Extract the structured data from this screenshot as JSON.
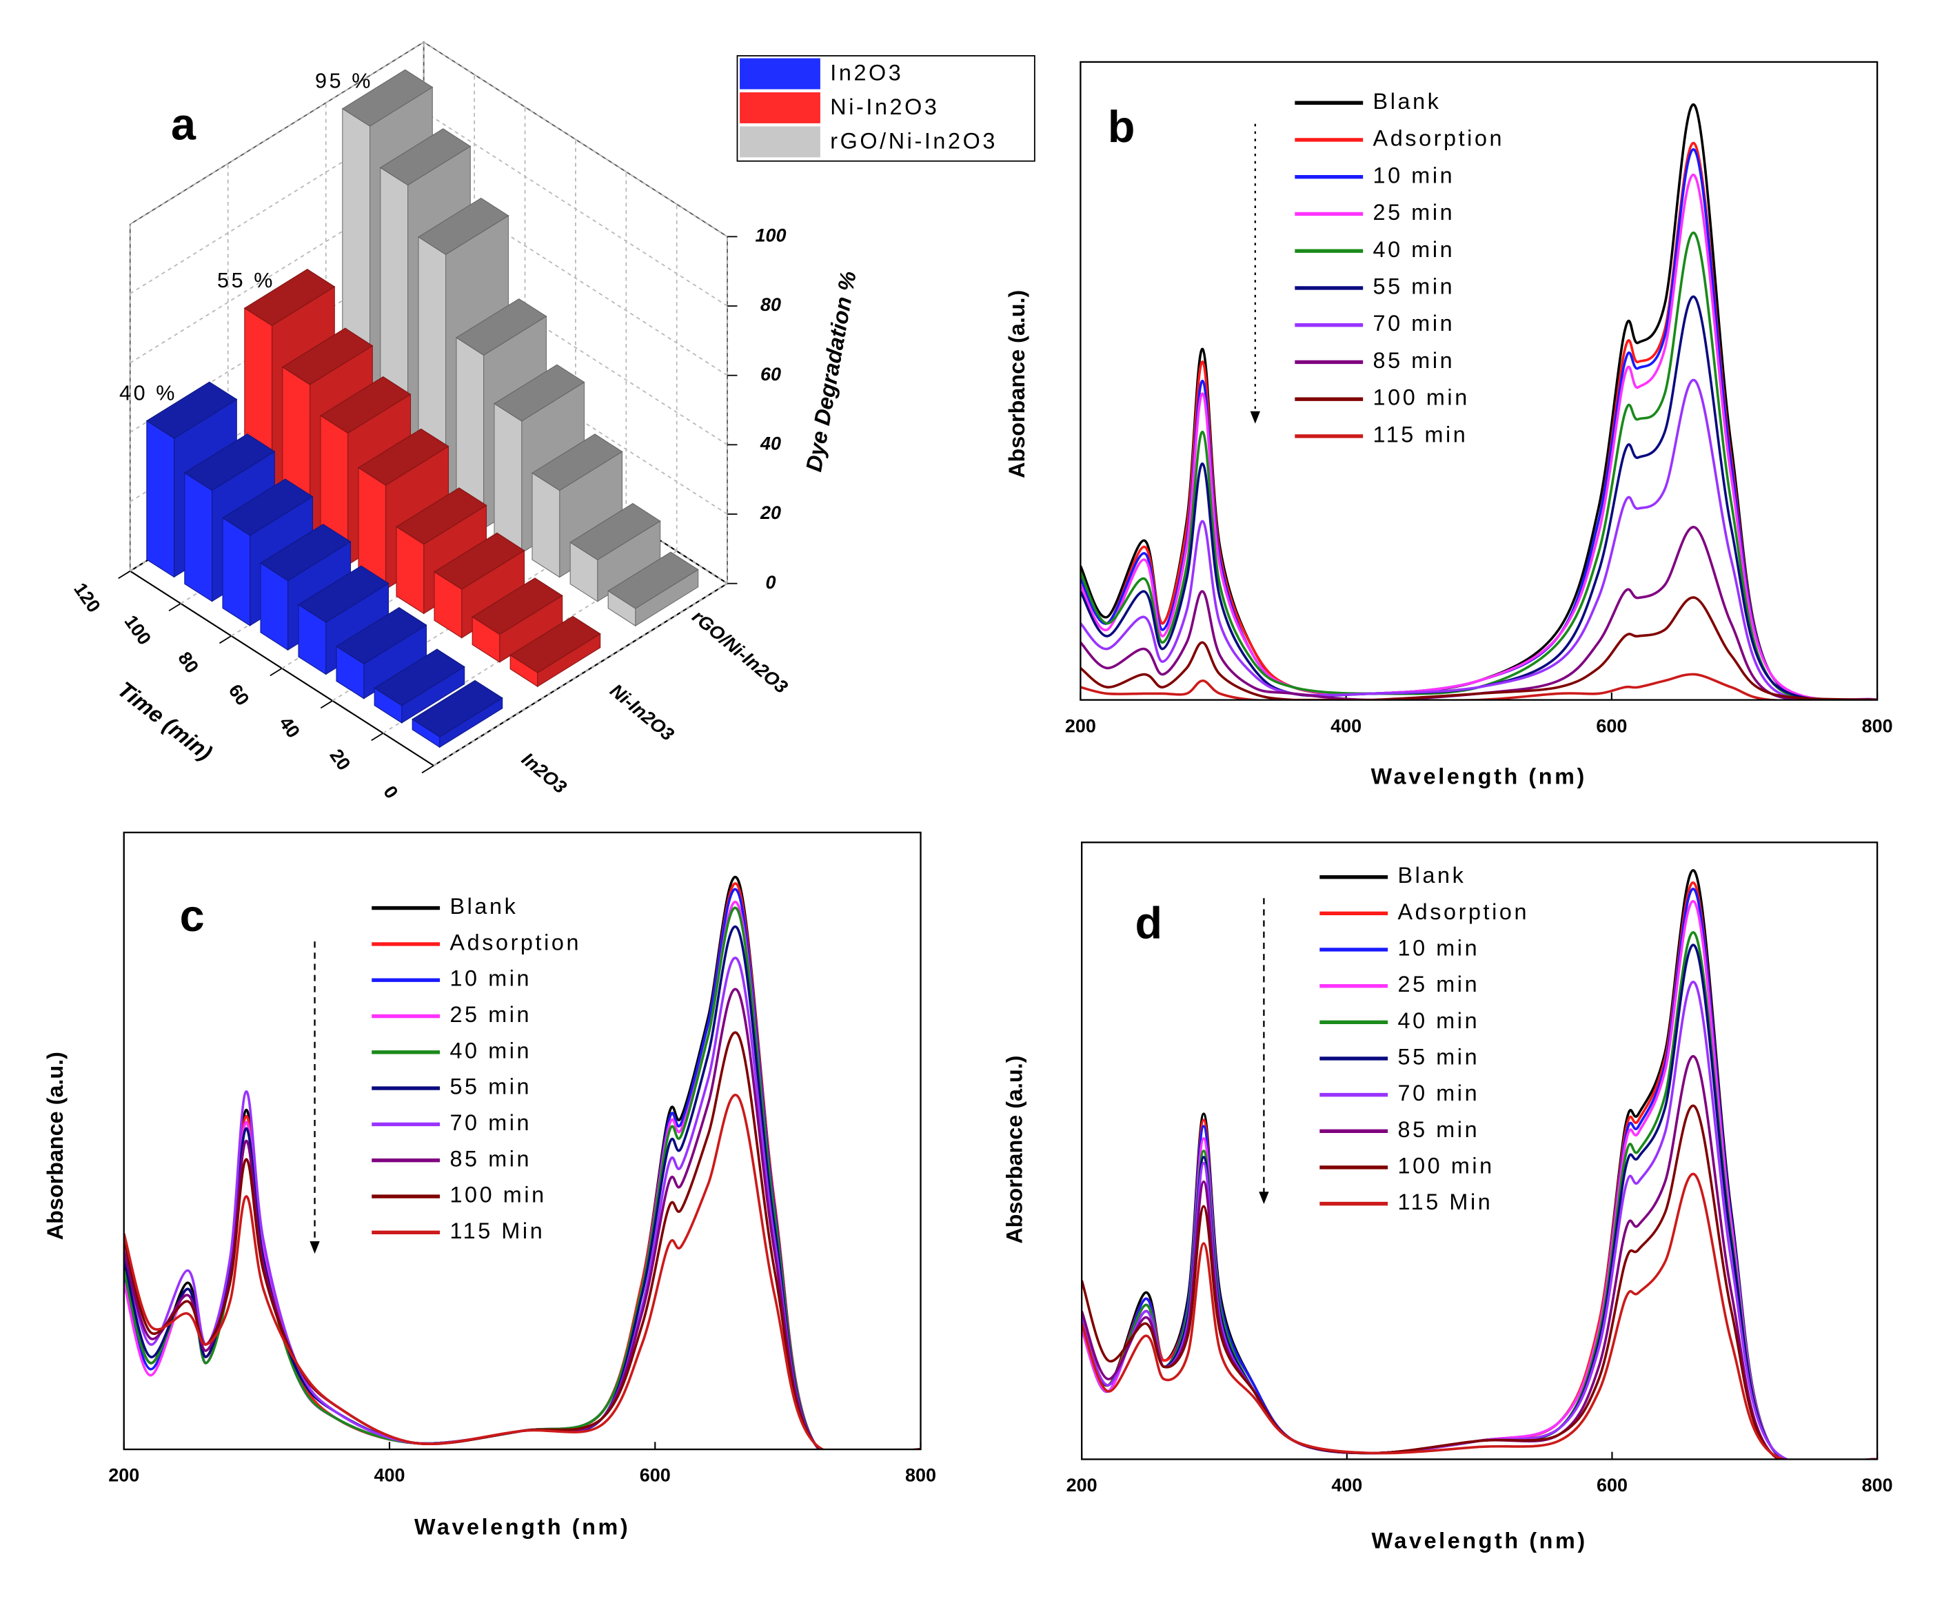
{
  "chart_data": [
    {
      "type": "bar3d",
      "label": "a",
      "xlabel": "Time (min)",
      "zlabel": "Dye Degradation %",
      "x": [
        115,
        100,
        85,
        70,
        55,
        40,
        25,
        10
      ],
      "xlim": [
        0,
        120
      ],
      "xticks": [
        0,
        20,
        40,
        60,
        80,
        100,
        120
      ],
      "zlim": [
        0,
        100
      ],
      "zticks": [
        0,
        20,
        40,
        60,
        80,
        100
      ],
      "series": [
        {
          "name": "In2O3",
          "color": "#1f2fff",
          "values": [
            40,
            32,
            26,
            20,
            15,
            10,
            5,
            3
          ]
        },
        {
          "name": "Ni-In2O3",
          "color": "#ff2a2a",
          "values": [
            55,
            45,
            38,
            30,
            20,
            14,
            8,
            4
          ]
        },
        {
          "name": "rGO/Ni-In2O3",
          "color": "#c8c8c8",
          "values": [
            95,
            85,
            72,
            50,
            38,
            25,
            12,
            5
          ]
        }
      ],
      "annotations": [
        "40 %",
        "55 %",
        "95 %"
      ]
    },
    {
      "type": "line",
      "label": "b",
      "xlabel": "Wavelength (nm)",
      "ylabel": "Absorbance (a.u.)",
      "xlim": [
        200,
        800
      ],
      "xticks": [
        200,
        400,
        600,
        800
      ],
      "ylim": [
        0,
        100
      ],
      "x": [
        200,
        220,
        248,
        262,
        280,
        292,
        305,
        330,
        360,
        420,
        500,
        560,
        590,
        610,
        620,
        640,
        663,
        690,
        720,
        800
      ],
      "series": [
        {
          "name": "Blank",
          "color": "#000000",
          "values": [
            21,
            13,
            25,
            12,
            28,
            55,
            24,
            8,
            2,
            1,
            3,
            11,
            30,
            58,
            56,
            62,
            93,
            40,
            4,
            0
          ]
        },
        {
          "name": "Adsorption",
          "color": "#ff1a1a",
          "values": [
            20,
            12,
            24,
            12,
            27,
            53,
            23,
            8,
            2,
            1,
            3,
            10,
            28,
            55,
            53,
            58,
            87,
            38,
            4,
            0
          ]
        },
        {
          "name": "10 min",
          "color": "#1a1aff",
          "values": [
            19,
            12,
            23,
            11,
            25,
            50,
            22,
            7,
            2,
            1,
            3,
            10,
            28,
            53,
            52,
            57,
            86,
            37,
            4,
            0
          ]
        },
        {
          "name": "25 min",
          "color": "#ff33ff",
          "values": [
            18,
            11,
            22,
            10,
            24,
            48,
            21,
            7,
            2,
            1,
            3,
            10,
            26,
            51,
            49,
            55,
            82,
            35,
            4,
            0
          ]
        },
        {
          "name": "40 min",
          "color": "#1a8a1a",
          "values": [
            20,
            12,
            19,
            9,
            21,
            42,
            18,
            6,
            2,
            1,
            2,
            9,
            23,
            45,
            44,
            48,
            73,
            31,
            3,
            0
          ]
        },
        {
          "name": "55 min",
          "color": "#0a0a80",
          "values": [
            17,
            10,
            17,
            8,
            19,
            37,
            16,
            5,
            1,
            1,
            2,
            7,
            20,
            39,
            38,
            42,
            63,
            27,
            3,
            0
          ]
        },
        {
          "name": "70 min",
          "color": "#9933ff",
          "values": [
            12,
            8,
            13,
            6,
            14,
            28,
            12,
            4,
            1,
            1,
            2,
            6,
            16,
            31,
            30,
            33,
            50,
            22,
            2,
            0
          ]
        },
        {
          "name": "85 min",
          "color": "#800080",
          "values": [
            9,
            5,
            8,
            4,
            9,
            17,
            7,
            2,
            1,
            0,
            1,
            3,
            9,
            17,
            16,
            18,
            27,
            12,
            1,
            0
          ]
        },
        {
          "name": "100 min",
          "color": "#800000",
          "values": [
            5,
            2,
            4,
            2,
            5,
            9,
            4,
            1,
            0,
            0,
            1,
            2,
            5,
            10,
            10,
            11,
            16,
            7,
            1,
            0
          ]
        },
        {
          "name": "115 min",
          "color": "#cc1a1a",
          "values": [
            2,
            1,
            1,
            1,
            1,
            3,
            1,
            0,
            0,
            0,
            0,
            1,
            1,
            2,
            2,
            3,
            4,
            2,
            0,
            0
          ]
        }
      ]
    },
    {
      "type": "line",
      "label": "c",
      "xlabel": "Wavelength (nm)",
      "ylabel": "Absorbance (a.u.)",
      "xlim": [
        200,
        800
      ],
      "xticks": [
        200,
        400,
        600,
        800
      ],
      "ylim": [
        0,
        100
      ],
      "x": [
        200,
        220,
        248,
        262,
        280,
        292,
        305,
        330,
        360,
        420,
        500,
        560,
        590,
        610,
        620,
        640,
        663,
        690,
        720,
        800
      ],
      "series": [
        {
          "name": "Blank",
          "color": "#000000",
          "values": [
            30,
            14,
            27,
            15,
            30,
            55,
            33,
            13,
            5,
            1,
            3,
            6,
            27,
            54,
            54,
            70,
            92,
            40,
            1,
            0
          ]
        },
        {
          "name": "Adsorption",
          "color": "#ff1a1a",
          "values": [
            29,
            14,
            26,
            15,
            29,
            54,
            32,
            13,
            5,
            1,
            3,
            6,
            27,
            53,
            53,
            69,
            91,
            40,
            1,
            0
          ]
        },
        {
          "name": "10 min",
          "color": "#1a1aff",
          "values": [
            28,
            13,
            26,
            14,
            29,
            53,
            32,
            12,
            5,
            1,
            3,
            6,
            26,
            53,
            53,
            69,
            90,
            39,
            1,
            0
          ]
        },
        {
          "name": "25 min",
          "color": "#ff33ff",
          "values": [
            27,
            12,
            26,
            14,
            29,
            53,
            32,
            12,
            5,
            1,
            3,
            6,
            26,
            52,
            52,
            67,
            88,
            38,
            1,
            0
          ]
        },
        {
          "name": "40 min",
          "color": "#1a8a1a",
          "values": [
            29,
            14,
            26,
            14,
            28,
            52,
            31,
            12,
            5,
            1,
            3,
            6,
            26,
            51,
            51,
            67,
            87,
            38,
            1,
            0
          ]
        },
        {
          "name": "55 min",
          "color": "#0a0a80",
          "values": [
            31,
            15,
            26,
            15,
            29,
            52,
            31,
            13,
            6,
            1,
            3,
            5,
            25,
            49,
            49,
            64,
            84,
            36,
            1,
            0
          ]
        },
        {
          "name": "70 min",
          "color": "#9933ff",
          "values": [
            33,
            17,
            29,
            17,
            31,
            58,
            34,
            14,
            6,
            1,
            3,
            5,
            23,
            46,
            46,
            60,
            79,
            34,
            1,
            0
          ]
        },
        {
          "name": "85 min",
          "color": "#800080",
          "values": [
            32,
            18,
            25,
            16,
            28,
            50,
            30,
            14,
            7,
            1,
            3,
            5,
            22,
            43,
            43,
            56,
            74,
            32,
            1,
            0
          ]
        },
        {
          "name": "100 min",
          "color": "#800000",
          "values": [
            34,
            19,
            24,
            17,
            27,
            47,
            29,
            14,
            7,
            1,
            3,
            5,
            20,
            39,
            39,
            51,
            67,
            29,
            1,
            0
          ]
        },
        {
          "name": "115 Min",
          "color": "#cc1a1a",
          "values": [
            35,
            20,
            22,
            17,
            24,
            41,
            26,
            14,
            7,
            1,
            3,
            4,
            17,
            33,
            33,
            43,
            57,
            25,
            1,
            0
          ]
        }
      ]
    },
    {
      "type": "line",
      "label": "d",
      "xlabel": "Wavelength (nm)",
      "ylabel": "Absorbance (a.u.)",
      "xlim": [
        200,
        800
      ],
      "xticks": [
        200,
        400,
        600,
        800
      ],
      "ylim": [
        0,
        100
      ],
      "x": [
        200,
        220,
        248,
        262,
        280,
        292,
        305,
        330,
        360,
        420,
        500,
        560,
        590,
        610,
        620,
        640,
        663,
        690,
        720,
        800
      ],
      "series": [
        {
          "name": "Blank",
          "color": "#000000",
          "values": [
            22,
            12,
            27,
            16,
            26,
            56,
            26,
            12,
            3,
            1,
            3,
            6,
            22,
            54,
            56,
            66,
            95,
            40,
            2,
            0
          ]
        },
        {
          "name": "Adsorption",
          "color": "#ff1a1a",
          "values": [
            22,
            12,
            26,
            16,
            25,
            55,
            25,
            12,
            3,
            1,
            3,
            6,
            22,
            53,
            55,
            65,
            93,
            39,
            2,
            0
          ]
        },
        {
          "name": "10 min",
          "color": "#1a1aff",
          "values": [
            21,
            11,
            26,
            15,
            25,
            54,
            25,
            12,
            3,
            1,
            3,
            6,
            21,
            52,
            54,
            64,
            92,
            39,
            2,
            0
          ]
        },
        {
          "name": "25 min",
          "color": "#ff33ff",
          "values": [
            21,
            11,
            25,
            15,
            24,
            52,
            24,
            11,
            3,
            1,
            3,
            6,
            21,
            51,
            53,
            63,
            90,
            38,
            2,
            0
          ]
        },
        {
          "name": "40 min",
          "color": "#1a8a1a",
          "values": [
            22,
            12,
            25,
            15,
            24,
            50,
            24,
            11,
            3,
            1,
            3,
            5,
            20,
            49,
            50,
            59,
            85,
            36,
            2,
            0
          ]
        },
        {
          "name": "55 min",
          "color": "#0a0a80",
          "values": [
            22,
            12,
            24,
            15,
            23,
            49,
            23,
            11,
            3,
            1,
            3,
            5,
            19,
            47,
            49,
            57,
            83,
            35,
            2,
            0
          ]
        },
        {
          "name": "70 min",
          "color": "#9933ff",
          "values": [
            23,
            12,
            24,
            15,
            22,
            48,
            22,
            11,
            3,
            1,
            3,
            5,
            18,
            44,
            45,
            53,
            77,
            32,
            2,
            0
          ]
        },
        {
          "name": "85 min",
          "color": "#800080",
          "values": [
            24,
            13,
            23,
            15,
            21,
            45,
            21,
            11,
            3,
            1,
            3,
            4,
            15,
            37,
            38,
            45,
            65,
            27,
            1,
            0
          ]
        },
        {
          "name": "100 min",
          "color": "#800000",
          "values": [
            29,
            16,
            22,
            15,
            20,
            41,
            20,
            11,
            3,
            1,
            3,
            4,
            13,
            32,
            34,
            40,
            57,
            24,
            1,
            0
          ]
        },
        {
          "name": "115 Min",
          "color": "#cc1a1a",
          "values": [
            22,
            11,
            20,
            13,
            17,
            35,
            17,
            10,
            3,
            1,
            2,
            3,
            11,
            26,
            27,
            32,
            46,
            19,
            1,
            0
          ]
        }
      ]
    }
  ]
}
